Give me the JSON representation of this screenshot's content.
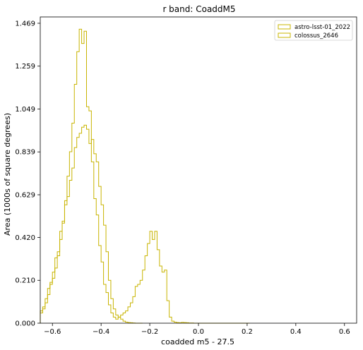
{
  "chart_data": {
    "type": "step-histogram",
    "title": "r band: CoaddM5",
    "xlabel": "coadded m5 - 27.5",
    "ylabel": "Area (1000s of square degrees)",
    "xlim": [
      -0.65,
      0.65
    ],
    "ylim": [
      0.0,
      1.5
    ],
    "xticks": [
      -0.6,
      -0.4,
      -0.2,
      0.0,
      0.2,
      0.4,
      0.6
    ],
    "xtick_labels": [
      "−0.6",
      "−0.4",
      "−0.2",
      "0.0",
      "0.2",
      "0.4",
      "0.6"
    ],
    "yticks": [
      0.0,
      0.21,
      0.42,
      0.629,
      0.839,
      1.049,
      1.259,
      1.469
    ],
    "ytick_labels": [
      "0.000",
      "0.210",
      "0.420",
      "0.629",
      "0.839",
      "1.049",
      "1.259",
      "1.469"
    ],
    "grid": false,
    "legend_position": "top-right",
    "series": [
      {
        "name": "astro-lsst-01_2022",
        "color": "#c8b400",
        "bin_edges": [
          -0.65,
          -0.64,
          -0.63,
          -0.62,
          -0.61,
          -0.6,
          -0.59,
          -0.58,
          -0.57,
          -0.56,
          -0.55,
          -0.54,
          -0.53,
          -0.52,
          -0.51,
          -0.5,
          -0.49,
          -0.48,
          -0.47,
          -0.46,
          -0.45,
          -0.44,
          -0.43,
          -0.42,
          -0.41,
          -0.4,
          -0.39,
          -0.38,
          -0.37,
          -0.36,
          -0.35,
          -0.34,
          -0.33,
          -0.32,
          -0.31,
          -0.3,
          -0.29,
          -0.28,
          -0.27,
          -0.26,
          -0.25,
          -0.24,
          -0.23
        ],
        "values": [
          0.06,
          0.08,
          0.12,
          0.17,
          0.2,
          0.25,
          0.32,
          0.35,
          0.45,
          0.5,
          0.58,
          0.62,
          0.7,
          0.76,
          0.86,
          0.91,
          0.93,
          0.96,
          0.97,
          0.95,
          0.88,
          0.9,
          0.83,
          0.79,
          0.67,
          0.58,
          0.48,
          0.35,
          0.21,
          0.12,
          0.07,
          0.04,
          0.03,
          0.02,
          0.01,
          0.005,
          0.003,
          0.002,
          0.001,
          0.0,
          0.0,
          0.0
        ]
      },
      {
        "name": "colossus_2646",
        "color": "#c8b400",
        "bin_edges": [
          -0.65,
          -0.64,
          -0.63,
          -0.62,
          -0.61,
          -0.6,
          -0.59,
          -0.58,
          -0.57,
          -0.56,
          -0.55,
          -0.54,
          -0.53,
          -0.52,
          -0.51,
          -0.5,
          -0.49,
          -0.48,
          -0.47,
          -0.46,
          -0.45,
          -0.44,
          -0.43,
          -0.42,
          -0.41,
          -0.4,
          -0.39,
          -0.38,
          -0.37,
          -0.36,
          -0.35,
          -0.34,
          -0.33,
          -0.32,
          -0.31,
          -0.3,
          -0.29,
          -0.28,
          -0.27,
          -0.26,
          -0.25,
          -0.24,
          -0.23,
          -0.22,
          -0.21,
          -0.2,
          -0.19,
          -0.18,
          -0.17,
          -0.16,
          -0.15,
          -0.14,
          -0.13,
          -0.12,
          -0.11,
          -0.1,
          -0.09,
          -0.08,
          -0.07,
          -0.06,
          -0.05,
          -0.04,
          -0.03,
          -0.02,
          -0.01,
          0.0,
          0.01,
          0.02,
          0.03,
          0.04,
          0.05,
          0.06,
          0.07,
          0.08,
          0.09,
          0.1,
          0.11,
          0.12,
          0.13,
          0.14,
          0.15,
          0.16,
          0.17,
          0.18,
          0.19,
          0.2,
          0.21
        ],
        "values": [
          0.05,
          0.07,
          0.1,
          0.14,
          0.19,
          0.22,
          0.27,
          0.33,
          0.41,
          0.49,
          0.6,
          0.72,
          0.84,
          0.98,
          1.17,
          1.33,
          1.44,
          1.37,
          1.43,
          1.06,
          1.04,
          0.79,
          0.61,
          0.53,
          0.38,
          0.3,
          0.19,
          0.15,
          0.09,
          0.05,
          0.03,
          0.02,
          0.03,
          0.04,
          0.05,
          0.06,
          0.08,
          0.1,
          0.13,
          0.18,
          0.19,
          0.21,
          0.26,
          0.33,
          0.39,
          0.45,
          0.41,
          0.45,
          0.36,
          0.28,
          0.25,
          0.26,
          0.11,
          0.03,
          0.01,
          0.005,
          0.003,
          0.002,
          0.004,
          0.003,
          0.002,
          0.001,
          0.001,
          0.0,
          0.0,
          0.0,
          0.0,
          0.0,
          0.0,
          0.0,
          0.0,
          0.0,
          0.0,
          0.0,
          0.0,
          0.0,
          0.0,
          0.0,
          0.0,
          0.0,
          0.0,
          0.0,
          0.0,
          0.0,
          0.0,
          0.0
        ]
      }
    ]
  }
}
